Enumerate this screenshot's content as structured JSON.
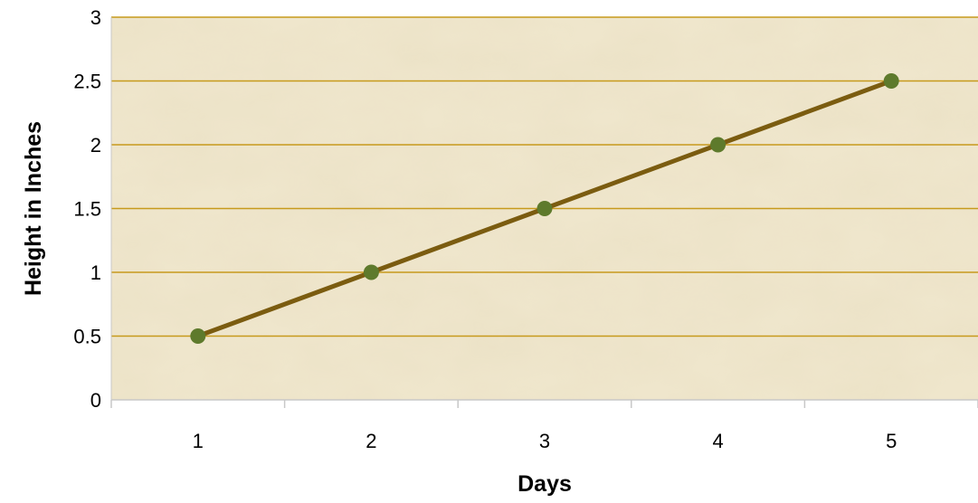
{
  "chart_data": {
    "type": "line",
    "title": "",
    "xlabel": "Days",
    "ylabel": "Height in Inches",
    "categories": [
      "1",
      "2",
      "3",
      "4",
      "5"
    ],
    "x": [
      1,
      2,
      3,
      4,
      5
    ],
    "series": [
      {
        "values": [
          0.5,
          1,
          1.5,
          2,
          2.5
        ],
        "line_color": "#7b5c10",
        "marker_color": "#5e7a2c"
      }
    ],
    "ylim": [
      0,
      3
    ],
    "yticks": [
      "0",
      "0.5",
      "1",
      "1.5",
      "2",
      "2.5",
      "3"
    ],
    "ytick_values": [
      0,
      0.5,
      1,
      1.5,
      2,
      2.5,
      3
    ],
    "grid": "horizontal",
    "legend": "none",
    "colors": {
      "plot_background": "#efe6cc",
      "gridline": "#c79a1c",
      "axis": "#c8c8c8"
    }
  }
}
